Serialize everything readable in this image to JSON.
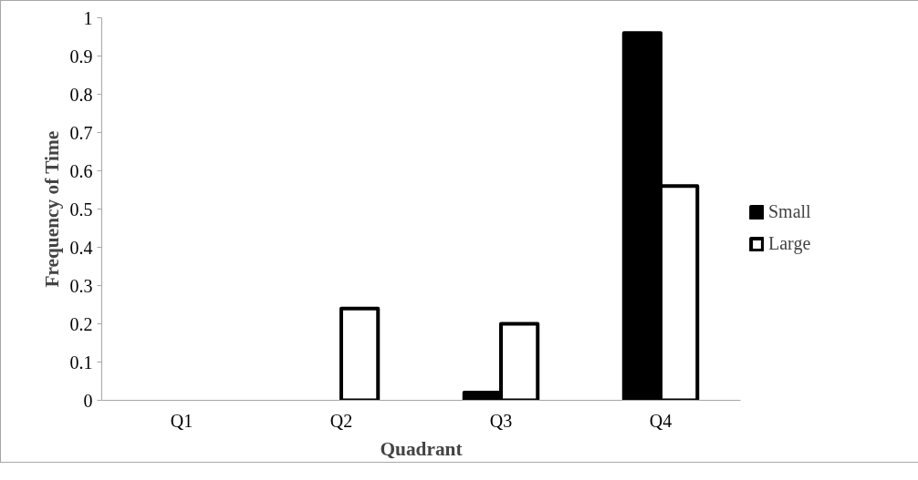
{
  "chart_data": {
    "type": "bar",
    "xlabel": "Quadrant",
    "ylabel": "Frequency of Time",
    "categories": [
      "Q1",
      "Q2",
      "Q3",
      "Q4"
    ],
    "series": [
      {
        "name": "Small",
        "color": "#000000",
        "values": [
          0,
          0,
          0.02,
          0.96
        ]
      },
      {
        "name": "Large",
        "color": "#ffffff",
        "values": [
          0,
          0.24,
          0.2,
          0.56
        ]
      }
    ],
    "ylim": [
      0,
      1
    ],
    "yticks": [
      0,
      0.1,
      0.2,
      0.3,
      0.4,
      0.5,
      0.6,
      0.7,
      0.8,
      0.9,
      1
    ],
    "grid": false,
    "legend": "right"
  }
}
